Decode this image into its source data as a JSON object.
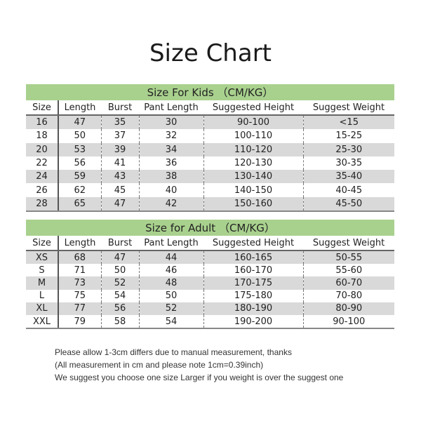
{
  "title": "Size Chart",
  "columns": [
    "Size",
    "Length",
    "Burst",
    "Pant Length",
    "Suggested Height",
    "Suggest Weight"
  ],
  "kids": {
    "caption": "Size For Kids （CM/KG）",
    "rows": [
      [
        "16",
        "47",
        "35",
        "30",
        "90-100",
        "<15"
      ],
      [
        "18",
        "50",
        "37",
        "32",
        "100-110",
        "15-25"
      ],
      [
        "20",
        "53",
        "39",
        "34",
        "110-120",
        "25-30"
      ],
      [
        "22",
        "56",
        "41",
        "36",
        "120-130",
        "30-35"
      ],
      [
        "24",
        "59",
        "43",
        "38",
        "130-140",
        "35-40"
      ],
      [
        "26",
        "62",
        "45",
        "40",
        "140-150",
        "40-45"
      ],
      [
        "28",
        "65",
        "47",
        "42",
        "150-160",
        "45-50"
      ]
    ]
  },
  "adult": {
    "caption": "Size for Adult （CM/KG）",
    "rows": [
      [
        "XS",
        "68",
        "47",
        "44",
        "160-165",
        "50-55"
      ],
      [
        "S",
        "71",
        "50",
        "46",
        "160-170",
        "55-60"
      ],
      [
        "M",
        "73",
        "52",
        "48",
        "170-175",
        "60-70"
      ],
      [
        "L",
        "75",
        "54",
        "50",
        "175-180",
        "70-80"
      ],
      [
        "XL",
        "77",
        "56",
        "52",
        "180-190",
        "80-90"
      ],
      [
        "XXL",
        "79",
        "58",
        "54",
        "190-200",
        "90-100"
      ]
    ]
  },
  "notes": [
    "Please allow 1-3cm differs due to manual measurement, thanks",
    "(All measurement in cm and please note 1cm=0.39inch)",
    "We suggest you choose one size Larger if you weight is over the suggest one"
  ],
  "colors": {
    "header_green": "#a9d18e",
    "stripe_gray": "#d9d9d9"
  }
}
